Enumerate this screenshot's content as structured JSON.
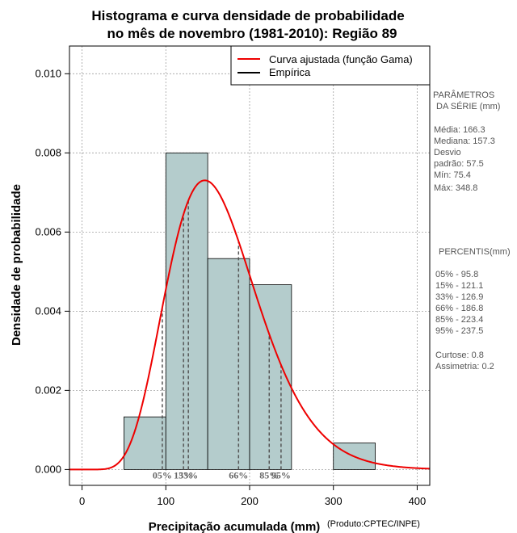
{
  "colors": {
    "bar_fill": "#b4cccc",
    "curve": "#ee0000",
    "grid": "#a0a0a0",
    "percentile_line": "#555555",
    "side_text": "#555555"
  },
  "chart_data": {
    "type": "bar",
    "title_line1": "Histograma e curva densidade de probabilidade",
    "title_line2": "no mês de novembro (1981-2010): Região 89",
    "xlabel": "Precipitação acumulada (mm)",
    "ylabel": "Densidade de probabilidade",
    "credit": "(Produto:CPTEC/INPE)",
    "xlim": [
      -15,
      415
    ],
    "ylim": [
      -0.0004,
      0.0107
    ],
    "x_ticks": [
      0,
      100,
      200,
      300,
      400
    ],
    "x_tick_labels": [
      "0",
      "100",
      "200",
      "300",
      "400"
    ],
    "y_ticks": [
      0,
      0.002,
      0.004,
      0.006,
      0.008,
      0.01
    ],
    "y_tick_labels": [
      "0.000",
      "0.002",
      "0.004",
      "0.006",
      "0.008",
      "0.010"
    ],
    "bins": [
      {
        "x0": 50,
        "x1": 100,
        "density": 0.00133
      },
      {
        "x0": 100,
        "x1": 150,
        "density": 0.008
      },
      {
        "x0": 150,
        "x1": 200,
        "density": 0.00533
      },
      {
        "x0": 200,
        "x1": 250,
        "density": 0.00467
      },
      {
        "x0": 250,
        "x1": 300,
        "density": 0
      },
      {
        "x0": 300,
        "x1": 350,
        "density": 0.00067
      }
    ],
    "curve": {
      "name": "Curva ajustada (função Gama)",
      "distribution": "gamma",
      "shape": 8.36,
      "scale": 19.9
    },
    "legend": [
      {
        "label": "Curva ajustada (função Gama)",
        "color": "#ee0000"
      },
      {
        "label": "Empírica",
        "color": "#000000"
      }
    ],
    "percentiles": [
      {
        "label": "05%",
        "value": 95.8
      },
      {
        "label": "15%",
        "value": 121.1
      },
      {
        "label": "33%",
        "value": 126.9
      },
      {
        "label": "66%",
        "value": 186.8
      },
      {
        "label": "85%",
        "value": 223.4
      },
      {
        "label": "95%",
        "value": 237.5
      }
    ]
  },
  "side_panel": {
    "params_title_1": "PARÂMETROS",
    "params_title_2": "DA SÉRIE (mm)",
    "media": "Média:  166.3",
    "mediana": "Mediana:  157.3",
    "desvio_1": "Desvio",
    "desvio_2": "padrão:  57.5",
    "min": "Mín:  75.4",
    "max": "Máx:  348.8",
    "percentis_title": "PERCENTIS(mm)",
    "p05": "05% -  95.8",
    "p15": "15% -  121.1",
    "p33": "33% -  126.9",
    "p66": "66% -  186.8",
    "p85": "85% -  223.4",
    "p95": "95% -  237.5",
    "curtose": "Curtose:  0.8",
    "assimetria": "Assimetria:  0.2"
  }
}
